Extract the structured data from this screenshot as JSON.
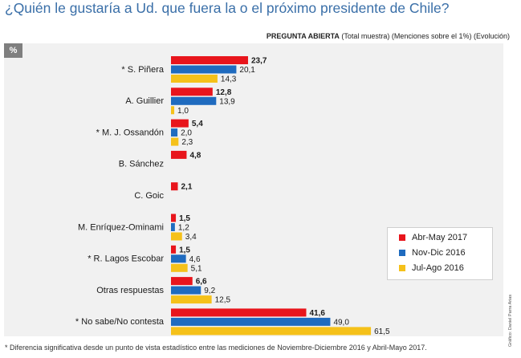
{
  "header": {
    "title": "¿Quién le gustaría a Ud. que fuera la o el próximo presidente de Chile?",
    "subtitle_bold": "PREGUNTA ABIERTA",
    "subtitle_rest": " (Total muestra) (Menciones sobre el 1%) (Evolución)"
  },
  "badge": "%",
  "footnote": "* Diferencia significativa desde un punto de vista estadístico entre las mediciones de Noviembre-Diciembre 2016 y Abril-Mayo 2017.",
  "credit": "Gráfico: Daniel Parra Arias",
  "colors": {
    "abr_may_2017": "#e8151c",
    "nov_dic_2016": "#1f6bbf",
    "jul_ago_2016": "#f5c11a"
  },
  "chart_data": {
    "type": "bar",
    "orientation": "horizontal",
    "categories": [
      "* S. Piñera",
      "A. Guillier",
      "* M. J. Ossandón",
      "B. Sánchez",
      "C. Goic",
      "M. Enríquez-Ominami",
      "* R. Lagos Escobar",
      "Otras respuestas",
      "* No sabe/No contesta"
    ],
    "series": [
      {
        "name": "Abr-May 2017",
        "values": [
          23.7,
          12.8,
          5.4,
          4.8,
          2.1,
          1.5,
          1.5,
          6.6,
          41.6
        ],
        "labels": [
          "23,7",
          "12,8",
          "5,4",
          "4,8",
          "2,1",
          "1,5",
          "1,5",
          "6,6",
          "41,6"
        ]
      },
      {
        "name": "Nov-Dic 2016",
        "values": [
          20.1,
          13.9,
          2.0,
          null,
          null,
          1.2,
          4.6,
          9.2,
          49.0
        ],
        "labels": [
          "20,1",
          "13,9",
          "2,0",
          null,
          null,
          "1,2",
          "4,6",
          "9,2",
          "49,0"
        ]
      },
      {
        "name": "Jul-Ago 2016",
        "values": [
          14.3,
          1.0,
          2.3,
          null,
          null,
          3.4,
          5.1,
          12.5,
          61.5
        ],
        "labels": [
          "14,3",
          "1,0",
          "2,3",
          null,
          null,
          "3,4",
          "5,1",
          "12,5",
          "61,5"
        ]
      }
    ],
    "legend_position": "bottom-right"
  }
}
